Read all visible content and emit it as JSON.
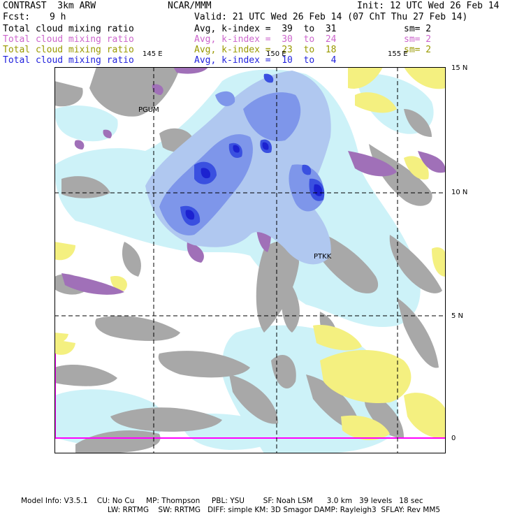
{
  "header": {
    "title_left": "CONTRAST  3km ARW",
    "title_center": "NCAR/MMM",
    "init": "Init: 12 UTC Wed 26 Feb 14",
    "fcst_label": "Fcst:",
    "fcst_value": "9 h",
    "valid": "Valid: 21 UTC Wed 26 Feb 14 (07 ChT Thu 27 Feb 14)"
  },
  "fields": [
    {
      "name": "Total cloud mixing ratio",
      "stat": "Avg, k-index =  39  to  31",
      "sm": "sm= 2",
      "color": "#000000"
    },
    {
      "name": "Total cloud mixing ratio",
      "stat": "Avg, k-index =  30  to  24",
      "sm": "sm= 2",
      "color": "#cc66cc"
    },
    {
      "name": "Total cloud mixing ratio",
      "stat": "Avg, k-index =  23  to  18",
      "sm": "sm= 2",
      "color": "#999900"
    },
    {
      "name": "Total cloud mixing ratio",
      "stat": "Avg, k-index =  10  to   4",
      "sm": "",
      "color": "#2222dd"
    }
  ],
  "map": {
    "lon_labels": [
      "145 E",
      "150 E",
      "155 E"
    ],
    "lat_labels": [
      "15 N",
      "10 N",
      "5 N",
      "0"
    ],
    "stations": [
      "PGUM",
      "PTKK"
    ],
    "colors": {
      "gray": "#a8a8a8",
      "purple": "#a070b8",
      "yellow": "#f4f080",
      "lightcyan": "#cdf2f8",
      "lightblue": "#b0c8f0",
      "midblue": "#7e96ea",
      "deepblue": "#3a50e0",
      "darkblue": "#1c22d0",
      "magenta": "#ff00ff"
    }
  },
  "footer": {
    "line1": "Model Info: V3.5.1    CU: No Cu     MP: Thompson     PBL: YSU        SF: Noah LSM      3.0 km   39 levels   18 sec",
    "line2": "LW: RRTMG    SW: RRTMG   DIFF: simple KM: 3D Smagor DAMP: Rayleigh3  SFLAY: Rev MM5"
  }
}
